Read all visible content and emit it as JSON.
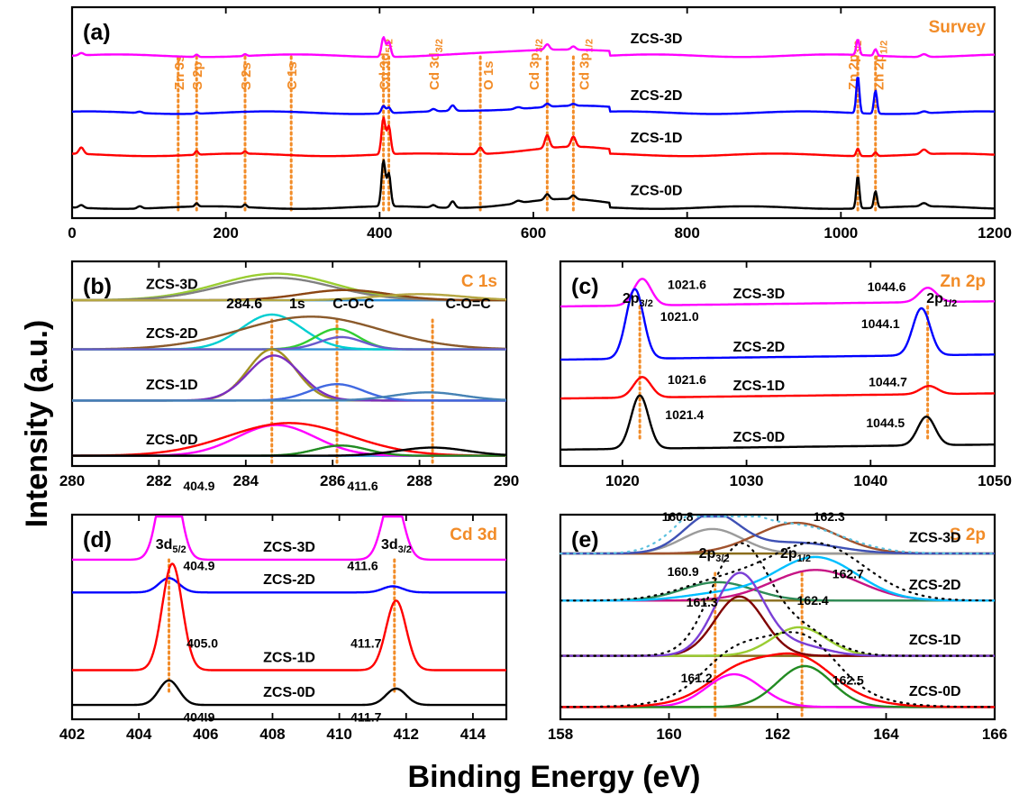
{
  "figure": {
    "ylabel": "Intensity (a.u.)",
    "xlabel": "Binding Energy (eV)"
  },
  "chart_data": [
    {
      "id": "a",
      "panel_label": "(a)",
      "title": "Survey",
      "type": "line",
      "xlim": [
        0,
        1200
      ],
      "xticks": [
        0,
        200,
        400,
        600,
        800,
        1000,
        1200
      ],
      "grid": false,
      "peak_markers": [
        {
          "x": 138,
          "label": "Zn 3s"
        },
        {
          "x": 162,
          "label": "S 2p"
        },
        {
          "x": 225,
          "label": "S 2s"
        },
        {
          "x": 285,
          "label": "C 1s"
        },
        {
          "x": 405,
          "label": "Cd 3d5/2"
        },
        {
          "x": 412,
          "label": "Cd 3d3/2"
        },
        {
          "x": 531,
          "label": "O 1s"
        },
        {
          "x": 618,
          "label": "Cd 3p3/2"
        },
        {
          "x": 652,
          "label": "Cd 3p1/2"
        },
        {
          "x": 1022,
          "label": "Zn 2p3/2"
        },
        {
          "x": 1045,
          "label": "Zn 2p1/2"
        }
      ],
      "series": [
        {
          "name": "ZCS-3D",
          "color": "#ff00ff",
          "baseline": 0.74,
          "peaks": [
            [
              12,
              0.05,
              3
            ],
            [
              162,
              0.05,
              2
            ],
            [
              225,
              0.04,
              2
            ],
            [
              405,
              0.42,
              2.5
            ],
            [
              412,
              0.32,
              2.5
            ],
            [
              618,
              0.12,
              3
            ],
            [
              652,
              0.07,
              3
            ],
            [
              1022,
              0.34,
              2
            ],
            [
              1045,
              0.14,
              2
            ],
            [
              1108,
              0.06,
              4
            ]
          ]
        },
        {
          "name": "ZCS-2D",
          "color": "#0000ff",
          "baseline": 0.47,
          "peaks": [
            [
              88,
              0.03,
              3
            ],
            [
              162,
              0.03,
              2
            ],
            [
              405,
              0.16,
              2.5
            ],
            [
              412,
              0.12,
              2.5
            ],
            [
              470,
              0.05,
              3
            ],
            [
              495,
              0.12,
              3
            ],
            [
              580,
              0.04,
              4
            ],
            [
              618,
              0.07,
              3
            ],
            [
              652,
              0.04,
              3
            ],
            [
              1022,
              0.8,
              2
            ],
            [
              1045,
              0.5,
              2
            ],
            [
              1108,
              0.04,
              4
            ]
          ]
        },
        {
          "name": "ZCS-1D",
          "color": "#ff0000",
          "baseline": 0.27,
          "peaks": [
            [
              12,
              0.14,
              3
            ],
            [
              162,
              0.08,
              2
            ],
            [
              225,
              0.05,
              2
            ],
            [
              405,
              0.78,
              2.5
            ],
            [
              412,
              0.6,
              2.5
            ],
            [
              531,
              0.14,
              3
            ],
            [
              618,
              0.28,
              3
            ],
            [
              652,
              0.22,
              3
            ],
            [
              1022,
              0.16,
              2
            ],
            [
              1045,
              0.08,
              2
            ],
            [
              1108,
              0.1,
              4
            ]
          ]
        },
        {
          "name": "ZCS-0D",
          "color": "#000000",
          "baseline": 0.02,
          "peaks": [
            [
              12,
              0.06,
              3
            ],
            [
              88,
              0.05,
              3
            ],
            [
              162,
              0.07,
              2
            ],
            [
              225,
              0.06,
              2
            ],
            [
              405,
              0.98,
              2.5
            ],
            [
              412,
              0.7,
              2.5
            ],
            [
              470,
              0.05,
              3
            ],
            [
              495,
              0.14,
              3
            ],
            [
              580,
              0.05,
              4
            ],
            [
              618,
              0.12,
              3
            ],
            [
              652,
              0.08,
              3
            ],
            [
              1022,
              0.7,
              2
            ],
            [
              1045,
              0.36,
              2
            ],
            [
              1108,
              0.07,
              4
            ]
          ]
        }
      ]
    },
    {
      "id": "b",
      "panel_label": "(b)",
      "title": "C 1s",
      "type": "line",
      "xlim": [
        280,
        290
      ],
      "xticks": [
        280,
        282,
        284,
        286,
        288,
        290
      ],
      "grid": false,
      "guides": [
        284.6,
        286.1,
        288.3
      ],
      "annotations": [
        {
          "text": "284.6",
          "x": 283.55
        },
        {
          "text": "1s",
          "x": 285.0
        },
        {
          "text": "C-O-C",
          "x": 286.0
        },
        {
          "text": "C-O=C",
          "x": 288.6
        }
      ],
      "series": [
        {
          "name": "ZCS-3D",
          "baseline": 0.81,
          "components": [
            {
              "center": 284.7,
              "height": 0.13,
              "width": 1.35,
              "color": "#9acd32"
            },
            {
              "center": 284.7,
              "height": 0.11,
              "width": 1.3,
              "color": "#808080"
            },
            {
              "center": 286.3,
              "height": 0.05,
              "width": 1.0,
              "color": "#8b4513"
            },
            {
              "center": 288.0,
              "height": 0.03,
              "width": 1.0,
              "color": "#b5a642"
            }
          ]
        },
        {
          "name": "ZCS-2D",
          "baseline": 0.57,
          "components": [
            {
              "center": 284.6,
              "height": 0.17,
              "width": 0.7,
              "color": "#00ced1"
            },
            {
              "center": 285.5,
              "height": 0.16,
              "width": 1.6,
              "color": "#8b5a2b"
            },
            {
              "center": 286.1,
              "height": 0.1,
              "width": 0.5,
              "color": "#32cd32"
            },
            {
              "center": 286.2,
              "height": 0.06,
              "width": 0.5,
              "color": "#6a5acd"
            }
          ]
        },
        {
          "name": "ZCS-1D",
          "baseline": 0.32,
          "components": [
            {
              "center": 284.6,
              "height": 0.25,
              "width": 0.55,
              "color": "#a09020"
            },
            {
              "center": 284.65,
              "height": 0.22,
              "width": 0.6,
              "color": "#7b2fbe"
            },
            {
              "center": 286.1,
              "height": 0.08,
              "width": 0.6,
              "color": "#4169e1"
            },
            {
              "center": 288.2,
              "height": 0.04,
              "width": 0.8,
              "color": "#4682b4"
            }
          ]
        },
        {
          "name": "ZCS-0D",
          "baseline": 0.05,
          "components": [
            {
              "center": 284.7,
              "height": 0.15,
              "width": 0.9,
              "color": "#ff00ff"
            },
            {
              "center": 285.0,
              "height": 0.16,
              "width": 1.4,
              "color": "#ff0000"
            },
            {
              "center": 286.2,
              "height": 0.05,
              "width": 0.6,
              "color": "#228b22"
            },
            {
              "center": 288.3,
              "height": 0.04,
              "width": 0.8,
              "color": "#000000"
            }
          ]
        }
      ]
    },
    {
      "id": "c",
      "panel_label": "(c)",
      "title": "Zn 2p",
      "type": "line",
      "xlim": [
        1015,
        1050
      ],
      "xticks": [
        1020,
        1030,
        1040,
        1050
      ],
      "grid": false,
      "guides": [
        1021.4,
        1044.6
      ],
      "annotations": [
        {
          "text": "2p3/2",
          "x": 1020.0
        },
        {
          "text": "2p1/2",
          "x": 1044.5
        }
      ],
      "series": [
        {
          "name": "ZCS-3D",
          "color": "#ff00ff",
          "baseline": 0.78,
          "peak1": [
            1021.6,
            0.13
          ],
          "peak2": [
            1044.6,
            0.07
          ],
          "labels": [
            "1021.6",
            "1044.6"
          ]
        },
        {
          "name": "ZCS-2D",
          "color": "#0000ff",
          "baseline": 0.52,
          "peak1": [
            1021.0,
            0.34
          ],
          "peak2": [
            1044.1,
            0.23
          ],
          "labels": [
            "1021.0",
            "1044.1"
          ]
        },
        {
          "name": "ZCS-1D",
          "color": "#ff0000",
          "baseline": 0.33,
          "peak1": [
            1021.6,
            0.1
          ],
          "peak2": [
            1044.7,
            0.04
          ],
          "labels": [
            "1021.6",
            "1044.7"
          ]
        },
        {
          "name": "ZCS-0D",
          "color": "#000000",
          "baseline": 0.08,
          "peak1": [
            1021.4,
            0.26
          ],
          "peak2": [
            1044.5,
            0.14
          ],
          "labels": [
            "1021.4",
            "1044.5"
          ]
        }
      ]
    },
    {
      "id": "d",
      "panel_label": "(d)",
      "title": "Cd 3d",
      "type": "line",
      "xlim": [
        402,
        415
      ],
      "xticks": [
        402,
        404,
        406,
        408,
        410,
        412,
        414
      ],
      "grid": false,
      "guides": [
        404.9,
        411.65
      ],
      "annotations": [
        {
          "text": "3d5/2",
          "x": 404.5
        },
        {
          "text": "3d3/2",
          "x": 411.25
        }
      ],
      "series": [
        {
          "name": "ZCS-3D",
          "color": "#ff00ff",
          "baseline": 0.78,
          "peak1": [
            404.9,
            0.5
          ],
          "peak2": [
            411.6,
            0.33
          ],
          "labels": [
            "404.9",
            "411.6"
          ]
        },
        {
          "name": "ZCS-2D",
          "color": "#0000ff",
          "baseline": 0.62,
          "peak1": [
            404.9,
            0.07
          ],
          "peak2": [
            411.6,
            0.03
          ],
          "labels": [
            "404.9",
            "411.6"
          ]
        },
        {
          "name": "ZCS-1D",
          "color": "#ff0000",
          "baseline": 0.24,
          "peak1": [
            405.0,
            0.52
          ],
          "peak2": [
            411.7,
            0.34
          ],
          "labels": [
            "405.0",
            "411.7"
          ]
        },
        {
          "name": "ZCS-0D",
          "color": "#000000",
          "baseline": 0.07,
          "peak1": [
            404.9,
            0.12
          ],
          "peak2": [
            411.7,
            0.08
          ],
          "labels": [
            "404.9",
            "411.7"
          ]
        }
      ]
    },
    {
      "id": "e",
      "panel_label": "(e)",
      "title": "S 2p",
      "type": "line",
      "xlim": [
        158,
        166
      ],
      "xticks": [
        158,
        160,
        162,
        164,
        166
      ],
      "grid": false,
      "guides": [
        160.85,
        162.45
      ],
      "annotations": [
        {
          "text": "2p3/2",
          "x": 160.55
        },
        {
          "text": "2p1/2",
          "x": 162.05
        }
      ],
      "series": [
        {
          "name": "ZCS-3D",
          "baseline": 0.81,
          "labels": [
            "160.8",
            "162.3"
          ],
          "components": [
            {
              "center": 160.8,
              "height": 0.12,
              "width": 0.55,
              "color": "#9b9b9b"
            },
            {
              "center": 162.35,
              "height": 0.15,
              "width": 0.75,
              "color": "#a0522d"
            },
            {
              "center": 160.8,
              "height": 0.15,
              "width": 0.5,
              "color": "#3f51b5",
              "envelope": true
            }
          ]
        },
        {
          "name": "ZCS-2D",
          "baseline": 0.58,
          "labels": [
            "160.9",
            "162.7"
          ],
          "components": [
            {
              "center": 160.9,
              "height": 0.09,
              "width": 0.65,
              "color": "#2e8b57"
            },
            {
              "center": 162.7,
              "height": 0.15,
              "width": 0.8,
              "color": "#c71585"
            },
            {
              "center": 162.7,
              "height": 0.16,
              "width": 0.75,
              "color": "#00bfff",
              "envelope": true
            }
          ]
        },
        {
          "name": "ZCS-1D",
          "baseline": 0.31,
          "labels": [
            "161.3",
            "162.4"
          ],
          "components": [
            {
              "center": 161.3,
              "height": 0.29,
              "width": 0.45,
              "color": "#800000"
            },
            {
              "center": 162.4,
              "height": 0.14,
              "width": 0.5,
              "color": "#9acd32"
            },
            {
              "center": 161.3,
              "height": 0.3,
              "width": 0.45,
              "color": "#7b3fd6",
              "envelope": true
            }
          ]
        },
        {
          "name": "ZCS-0D",
          "baseline": 0.06,
          "labels": [
            "161.2",
            "162.5"
          ],
          "components": [
            {
              "center": 161.2,
              "height": 0.16,
              "width": 0.5,
              "color": "#ff00ff"
            },
            {
              "center": 162.5,
              "height": 0.2,
              "width": 0.5,
              "color": "#228b22"
            },
            {
              "center": 162.0,
              "height": 0.2,
              "width": 0.95,
              "color": "#ff0000",
              "envelope": true
            }
          ]
        }
      ]
    }
  ]
}
